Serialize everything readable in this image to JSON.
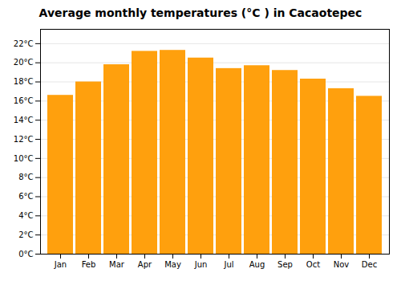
{
  "chart_data": {
    "type": "bar",
    "title": "Average monthly temperatures (°C ) in Cacaotepec",
    "categories": [
      "Jan",
      "Feb",
      "Mar",
      "Apr",
      "May",
      "Jun",
      "Jul",
      "Aug",
      "Sep",
      "Oct",
      "Nov",
      "Dec"
    ],
    "values": [
      16.6,
      18.0,
      19.8,
      21.2,
      21.3,
      20.5,
      19.4,
      19.7,
      19.2,
      18.3,
      17.3,
      16.5
    ],
    "color": "#FFA00D",
    "ylim": [
      0,
      23.5
    ],
    "yticks": [
      {
        "value": 0,
        "label": "0°C"
      },
      {
        "value": 2,
        "label": "2°C"
      },
      {
        "value": 4,
        "label": "4°C"
      },
      {
        "value": 6,
        "label": "6°C"
      },
      {
        "value": 8,
        "label": "8°C"
      },
      {
        "value": 10,
        "label": "10°C"
      },
      {
        "value": 12,
        "label": "12°C"
      },
      {
        "value": 14,
        "label": "14°C"
      },
      {
        "value": 16,
        "label": "16°C"
      },
      {
        "value": 18,
        "label": "18°C"
      },
      {
        "value": 20,
        "label": "20°C"
      },
      {
        "value": 22,
        "label": "22°C"
      }
    ],
    "grid": true
  }
}
